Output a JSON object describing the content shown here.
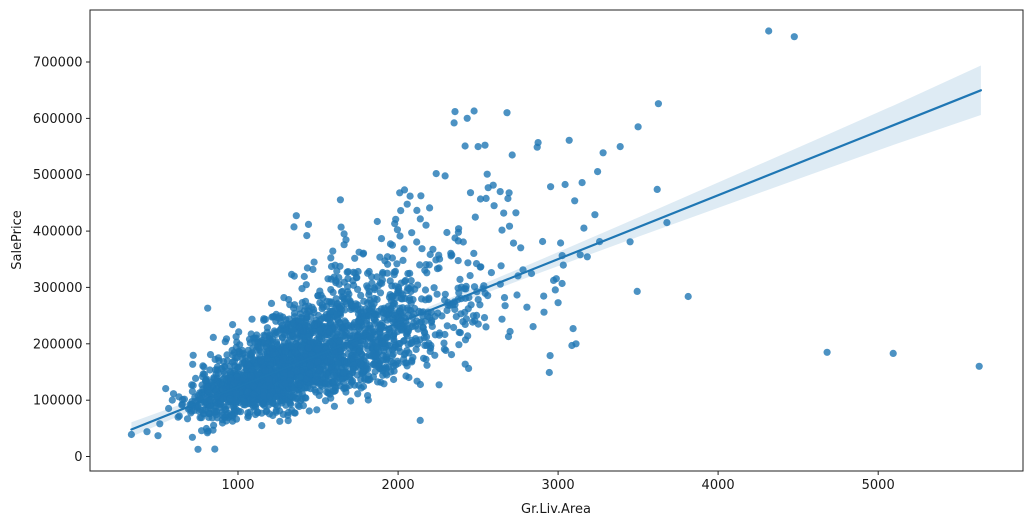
{
  "figure": {
    "background_color": "#ffffff",
    "accent_color": "#1f77b4"
  },
  "chart_data": {
    "type": "scatter",
    "title": "",
    "xlabel": "Gr.Liv.Area",
    "ylabel": "SalePrice",
    "xlim": [
      75,
      5905
    ],
    "ylim": [
      -25700,
      792300
    ],
    "grid": false,
    "legend": null,
    "x_ticks": [
      1000,
      2000,
      3000,
      4000,
      5000
    ],
    "x_tick_labels": [
      "1000",
      "2000",
      "3000",
      "4000",
      "5000"
    ],
    "y_ticks": [
      0,
      100000,
      200000,
      300000,
      400000,
      500000,
      600000,
      700000
    ],
    "y_tick_labels": [
      "0",
      "100000",
      "200000",
      "300000",
      "400000",
      "500000",
      "600000",
      "700000"
    ],
    "marker_style": {
      "color": "#1f77b4",
      "opacity": 0.8,
      "radius": 3.6
    },
    "regression_line": {
      "color": "#1f77b4",
      "width": 2.2,
      "x_start": 334,
      "x_end": 5642,
      "intercept": 10100,
      "slope": 113.4
    },
    "confidence_band": {
      "color": "#1f77b4",
      "opacity": 0.15,
      "samples_x": [
        334,
        800,
        1200,
        1550,
        2000,
        2400,
        2900,
        3400,
        4000,
        4600,
        5100,
        5642
      ],
      "half_widths": [
        13000,
        8000,
        5000,
        4000,
        5500,
        8000,
        11500,
        16000,
        22500,
        29000,
        35000,
        44000
      ]
    },
    "outlier_points": [
      [
        4316,
        755000
      ],
      [
        4476,
        745000
      ],
      [
        2356,
        612000
      ],
      [
        2475,
        613000
      ],
      [
        2350,
        592000
      ],
      [
        2681,
        610000
      ],
      [
        3627,
        626000
      ],
      [
        2419,
        551000
      ],
      [
        2500,
        550000
      ],
      [
        2875,
        557000
      ],
      [
        2713,
        535000
      ],
      [
        3281,
        539000
      ],
      [
        3388,
        550000
      ],
      [
        3500,
        585000
      ],
      [
        2238,
        502000
      ],
      [
        2294,
        498000
      ],
      [
        3150,
        486000
      ],
      [
        2563,
        477000
      ],
      [
        2638,
        470000
      ],
      [
        2694,
        468000
      ],
      [
        3619,
        474000
      ],
      [
        3230,
        429000
      ],
      [
        3680,
        415000
      ],
      [
        3450,
        381000
      ],
      [
        3138,
        358000
      ],
      [
        3494,
        293000
      ],
      [
        3813,
        284000
      ],
      [
        4681,
        185000
      ],
      [
        5094,
        183000
      ],
      [
        5631,
        160000
      ],
      [
        1430,
        392000
      ],
      [
        1663,
        395000
      ],
      [
        1870,
        417000
      ],
      [
        1985,
        421000
      ],
      [
        2010,
        468000
      ],
      [
        2040,
        473000
      ],
      [
        2075,
        462000
      ],
      [
        2945,
        149000
      ],
      [
        3086,
        197000
      ],
      [
        3112,
        200000
      ],
      [
        2138,
        64000
      ],
      [
        750,
        12800
      ],
      [
        855,
        13100
      ],
      [
        334,
        39000
      ],
      [
        431,
        44000
      ],
      [
        500,
        37000
      ],
      [
        3025,
        307000
      ],
      [
        3000,
        273000
      ],
      [
        3094,
        227000
      ],
      [
        2950,
        179000
      ],
      [
        2600,
        445000
      ],
      [
        2550,
        458000
      ],
      [
        2660,
        432000
      ]
    ],
    "dense_cloud": {
      "description": "Dense unreadable core of ~2450 house sales; procedurally approximated, strong positive linear trend with fan-shaped (heteroscedastic) spread",
      "seed": 20,
      "count": 2400,
      "x_log_mean": 7.26,
      "x_log_sd": 0.3,
      "x_min": 334,
      "x_max": 3290,
      "y_log_sd": 0.26,
      "y_add_sd": 9000,
      "y_min": 13000,
      "y_max": 622000
    }
  }
}
